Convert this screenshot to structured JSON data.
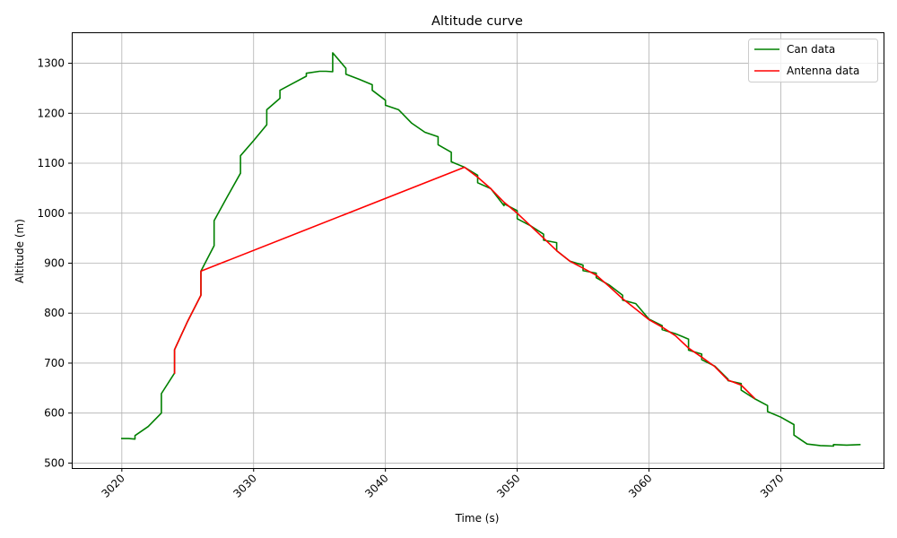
{
  "chart_data": {
    "type": "line",
    "title": "Altitude curve",
    "xlabel": "Time (s)",
    "ylabel": "Altitude (m)",
    "xlim": [
      3016.2,
      3077.8
    ],
    "ylim": [
      490,
      1362
    ],
    "xticks": [
      3020,
      3030,
      3040,
      3050,
      3060,
      3070
    ],
    "yticks": [
      500,
      600,
      700,
      800,
      900,
      1000,
      1100,
      1200,
      1300
    ],
    "grid": true,
    "legend_position": "top-right",
    "series": [
      {
        "name": "Can data",
        "color": "#008000",
        "points": [
          [
            3020,
            549
          ],
          [
            3020.5,
            549
          ],
          [
            3021,
            548
          ],
          [
            3021,
            555
          ],
          [
            3022,
            573
          ],
          [
            3023,
            600
          ],
          [
            3023,
            639
          ],
          [
            3024,
            680
          ],
          [
            3024,
            727
          ],
          [
            3025,
            784
          ],
          [
            3026,
            836
          ],
          [
            3026,
            884
          ],
          [
            3027,
            935
          ],
          [
            3027,
            985
          ],
          [
            3028,
            1033
          ],
          [
            3029,
            1080
          ],
          [
            3029,
            1115
          ],
          [
            3030,
            1145
          ],
          [
            3031,
            1177
          ],
          [
            3031,
            1207
          ],
          [
            3032,
            1230
          ],
          [
            3032,
            1246
          ],
          [
            3033,
            1260
          ],
          [
            3034,
            1274
          ],
          [
            3034,
            1280
          ],
          [
            3035,
            1284
          ],
          [
            3035.5,
            1284
          ],
          [
            3036,
            1283
          ],
          [
            3036,
            1321
          ],
          [
            3037,
            1290
          ],
          [
            3037,
            1278
          ],
          [
            3038,
            1268
          ],
          [
            3039,
            1257
          ],
          [
            3039,
            1246
          ],
          [
            3040,
            1226
          ],
          [
            3040,
            1216
          ],
          [
            3041,
            1207
          ],
          [
            3042,
            1180
          ],
          [
            3043,
            1162
          ],
          [
            3044,
            1153
          ],
          [
            3044,
            1137
          ],
          [
            3045,
            1122
          ],
          [
            3045,
            1103
          ],
          [
            3046,
            1092
          ],
          [
            3047,
            1076
          ],
          [
            3047,
            1061
          ],
          [
            3048,
            1049
          ],
          [
            3049,
            1015
          ],
          [
            3049,
            1019
          ],
          [
            3050,
            1005
          ],
          [
            3050,
            989
          ],
          [
            3051,
            975
          ],
          [
            3052,
            958
          ],
          [
            3052,
            946
          ],
          [
            3053,
            941
          ],
          [
            3053,
            925
          ],
          [
            3054,
            904
          ],
          [
            3055,
            896
          ],
          [
            3055,
            885
          ],
          [
            3056,
            880
          ],
          [
            3056,
            871
          ],
          [
            3057,
            856
          ],
          [
            3058,
            836
          ],
          [
            3058,
            826
          ],
          [
            3059,
            819
          ],
          [
            3060,
            788
          ],
          [
            3061,
            775
          ],
          [
            3061,
            767
          ],
          [
            3062,
            759
          ],
          [
            3063,
            748
          ],
          [
            3063,
            726
          ],
          [
            3064,
            718
          ],
          [
            3064,
            707
          ],
          [
            3065,
            694
          ],
          [
            3066,
            668
          ],
          [
            3066,
            665
          ],
          [
            3067,
            659
          ],
          [
            3067,
            646
          ],
          [
            3068,
            629
          ],
          [
            3069,
            615
          ],
          [
            3069,
            603
          ],
          [
            3070,
            592
          ],
          [
            3071,
            577
          ],
          [
            3071,
            556
          ],
          [
            3072,
            538
          ],
          [
            3073,
            535
          ],
          [
            3074,
            534
          ],
          [
            3074,
            537
          ],
          [
            3075,
            536
          ],
          [
            3076,
            537
          ]
        ]
      },
      {
        "name": "Antenna data",
        "color": "#ff0000",
        "points": [
          [
            3024,
            680
          ],
          [
            3024,
            727
          ],
          [
            3025,
            784
          ],
          [
            3026,
            836
          ],
          [
            3026,
            884
          ],
          [
            3046,
            1092
          ],
          [
            3047,
            1072
          ],
          [
            3048,
            1049
          ],
          [
            3049,
            1022
          ],
          [
            3050,
            1000
          ],
          [
            3051,
            975
          ],
          [
            3052,
            950
          ],
          [
            3053,
            925
          ],
          [
            3054,
            904
          ],
          [
            3055,
            890
          ],
          [
            3056,
            876
          ],
          [
            3057,
            853
          ],
          [
            3058,
            829
          ],
          [
            3059,
            808
          ],
          [
            3060,
            787
          ],
          [
            3061,
            772
          ],
          [
            3062,
            755
          ],
          [
            3063,
            730
          ],
          [
            3064,
            712
          ],
          [
            3065,
            693
          ],
          [
            3066,
            666
          ],
          [
            3067,
            656
          ],
          [
            3068,
            630
          ]
        ]
      }
    ]
  }
}
